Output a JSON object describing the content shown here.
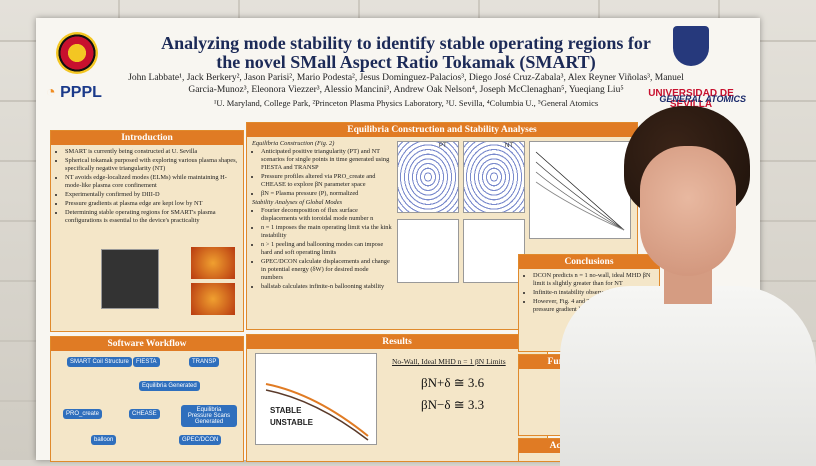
{
  "poster": {
    "title": "Analyzing mode stability to identify stable operating regions for the novel SMall Aspect Ratio Tokamak (SMART)",
    "authors": "John Labbate¹, Jack Berkery², Jason Parisi², Mario Podesta², Jesus Dominguez-Palacios³, Diego José Cruz-Zabala³, Alex Reyner Viñolas³, Manuel Garcia-Munoz³, Eleonora Viezzer³, Alessio Mancini³, Andrew Oak Nelson⁴, Joseph McClenaghan⁵, Yueqiang Liu⁵",
    "affiliations": "¹U. Maryland, College Park, ²Princeton Plasma Physics Laboratory, ³U. Sevilla, ⁴Columbia U., ⁵General Atomics",
    "logos": {
      "pppl": "PPPL",
      "sevilla": "UNIVERSIDAD DE SEVILLA",
      "ga": "GENERAL ATOMICS"
    },
    "sections": {
      "introduction": {
        "header": "Introduction",
        "bullets": [
          "SMART is currently being constructed at U. Sevilla",
          "Spherical tokamak purposed with exploring various plasma shapes, specifically negative triangularity (NT)",
          "NT avoids edge-localized modes (ELMs) while maintaining H-mode-like plasma core confinement",
          "Experimentally confirmed by DIII-D",
          "Pressure gradients at plasma edge are kept low by NT",
          "Determining stable operating regions for SMART's plasma configurations is essential to the device's practicality"
        ]
      },
      "software": {
        "header": "Software Workflow",
        "nodes": [
          "SMART Coil Structure",
          "FIESTA",
          "TRANSP",
          "Equilibria Generated",
          "PRO_create",
          "CHEASE",
          "Equilibria Pressure Scans Generated",
          "balloon",
          "GPEC/DCON"
        ]
      },
      "equilibria": {
        "header": "Equilibria Construction and Stability Analyses",
        "sub1": "Equilibria Construction (Fig. 2)",
        "bullets1": [
          "Anticipated positive triangularity (PT) and NT scenarios for single points in time generated using FIESTA and TRANSP",
          "Pressure profiles altered via PRO_create and CHEASE to explore βN parameter space",
          "βN = Plasma pressure (P), normalized"
        ],
        "sub2": "Stability Analyses of Global Modes",
        "bullets2": [
          "Fourier decomposition of flux surface displacements with toroidal mode number n",
          "n = 1 imposes the main operating limit via the kink instability",
          "n > 1 peeling and ballooning modes can impose hard and soft operating limits",
          "GPEC/DCON calculate displacements and change in potential energy (δW) for desired mode numbers",
          "ballstab calculates infinite-n ballooning stability"
        ],
        "fig_labels": [
          "PT",
          "NT"
        ]
      },
      "results": {
        "header": "Results",
        "limit_title": "No-Wall, Ideal MHD n = 1 βN Limits",
        "eq_pt": "βN+δ ≅ 3.6",
        "eq_nt": "βN−δ ≅ 3.3",
        "stable": "STABLE",
        "unstable": "UNSTABLE"
      },
      "conclusions": {
        "header": "Conclusions",
        "bullets": [
          "DCON predicts n = 1 no-wall, ideal MHD βN limit is slightly greater than for NT",
          "Infinite-n instability observed in low q and βN",
          "However, Fig. 4 and Tables suggest lower pressure gradient limits"
        ]
      },
      "further": {
        "header": "Further Exploration"
      },
      "ack": {
        "header": "Acknowledgements"
      }
    }
  }
}
